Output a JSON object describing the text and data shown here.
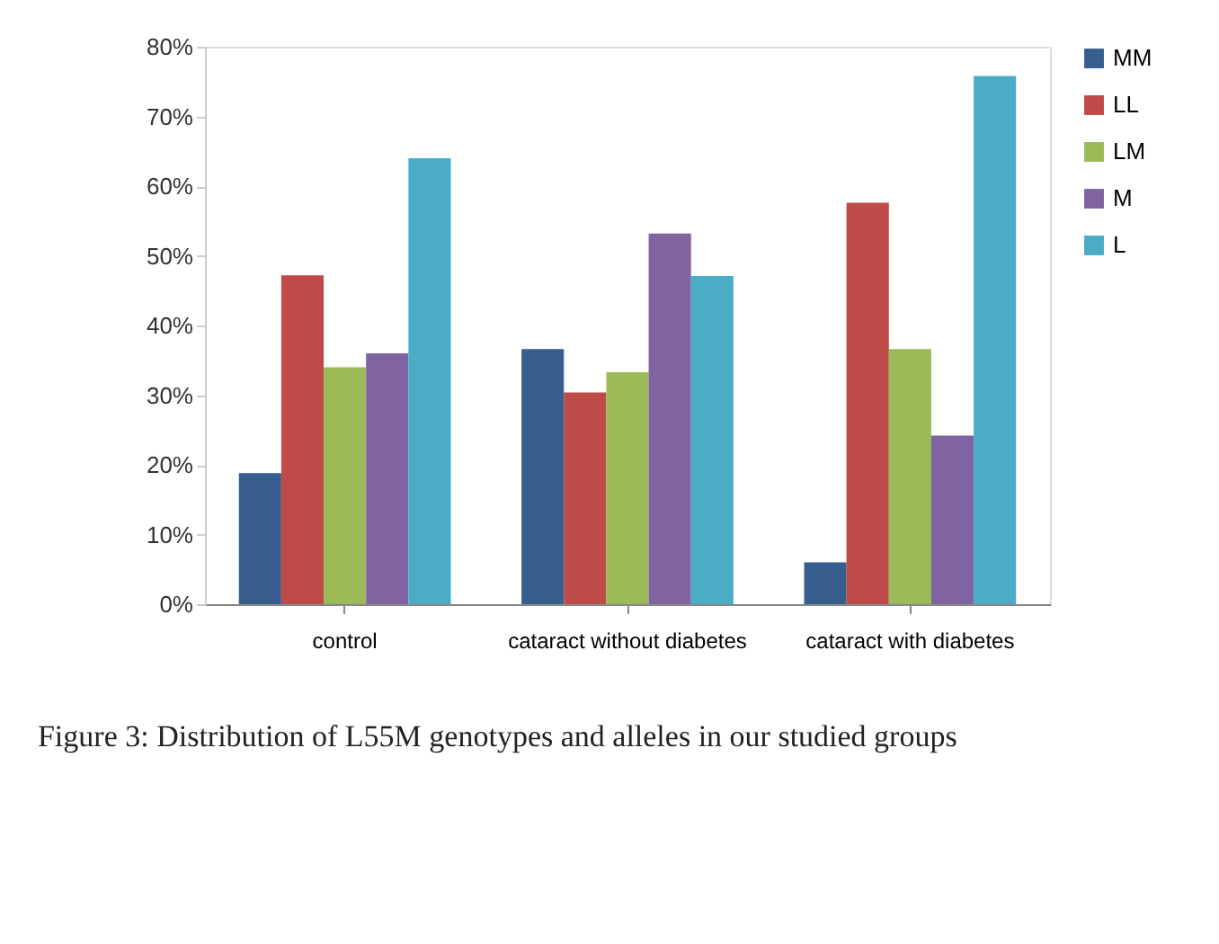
{
  "chart_data": {
    "type": "bar",
    "categories": [
      "control",
      "cataract without diabetes",
      "cataract with diabetes"
    ],
    "series": [
      {
        "name": "MM",
        "color": "#375e8f",
        "values": [
          18.8,
          36.6,
          6
        ]
      },
      {
        "name": "LL",
        "color": "#be4b48",
        "values": [
          47.2,
          30.4,
          57.6
        ]
      },
      {
        "name": "LM",
        "color": "#9bbb59",
        "values": [
          34,
          33.3,
          36.6
        ]
      },
      {
        "name": "M",
        "color": "#8064a2",
        "values": [
          36,
          53.2,
          24.2
        ]
      },
      {
        "name": "L",
        "color": "#4bacc6",
        "values": [
          64,
          47.1,
          75.8
        ]
      }
    ],
    "ylim": [
      0,
      80
    ],
    "yticks": [
      {
        "value": 0,
        "label": "0%"
      },
      {
        "value": 10,
        "label": "10%"
      },
      {
        "value": 20,
        "label": "20%"
      },
      {
        "value": 30,
        "label": "30%"
      },
      {
        "value": 40,
        "label": "40%"
      },
      {
        "value": 50,
        "label": "50%"
      },
      {
        "value": 60,
        "label": "60%"
      },
      {
        "value": 70,
        "label": "70%"
      },
      {
        "value": 80,
        "label": "80%"
      }
    ],
    "grid": false,
    "legend": "right",
    "annotations": [
      "Figure 3: Distribution of L55M genotypes and alleles in our studied groups"
    ]
  }
}
